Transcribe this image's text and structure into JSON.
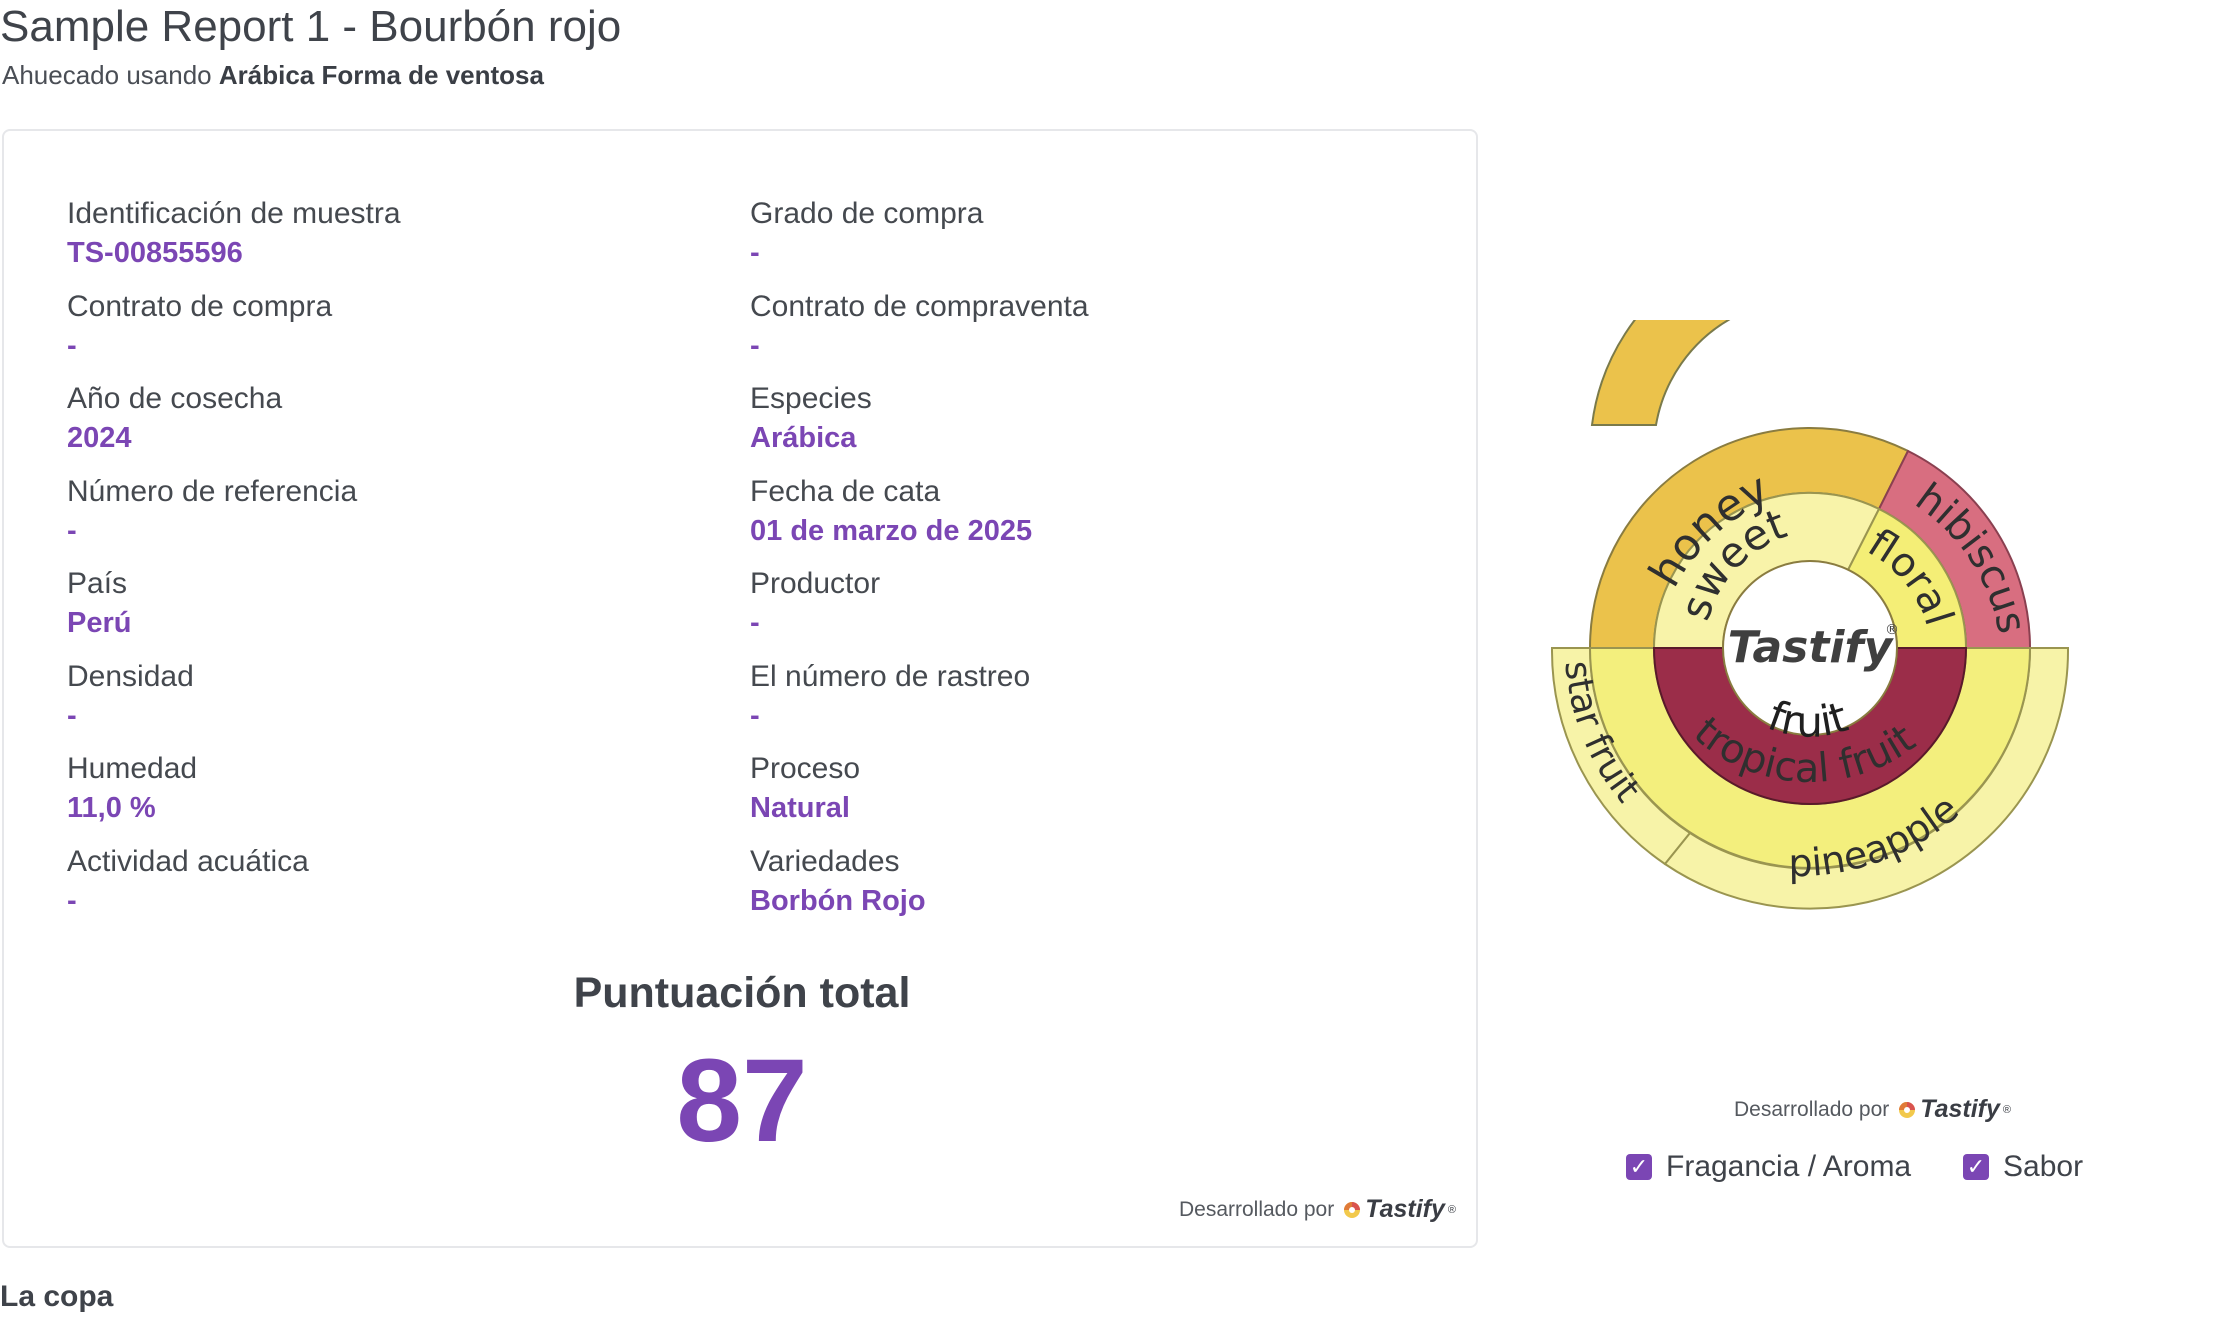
{
  "header": {
    "title": "Sample Report 1 - Bourbón rojo",
    "subtitle_prefix": "Ahuecado usando",
    "subtitle_form": "Arábica Forma de ventosa"
  },
  "details": {
    "left": [
      {
        "label": "Identificación de muestra",
        "value": "TS-00855596"
      },
      {
        "label": "Contrato de compra",
        "value": "-"
      },
      {
        "label": "Año de cosecha",
        "value": "2024"
      },
      {
        "label": "Número de referencia",
        "value": "-"
      },
      {
        "label": "País",
        "value": "Perú"
      },
      {
        "label": "Densidad",
        "value": "-"
      },
      {
        "label": "Humedad",
        "value": "11,0 %"
      },
      {
        "label": "Actividad acuática",
        "value": "-"
      }
    ],
    "right": [
      {
        "label": "Grado de compra",
        "value": "-"
      },
      {
        "label": "Contrato de compraventa",
        "value": "-"
      },
      {
        "label": "Especies",
        "value": "Arábica"
      },
      {
        "label": "Fecha de cata",
        "value": "01 de marzo de 2025"
      },
      {
        "label": "Productor",
        "value": "-"
      },
      {
        "label": "El número de rastreo",
        "value": "-"
      },
      {
        "label": "Proceso",
        "value": "Natural"
      },
      {
        "label": "Variedades",
        "value": "Borbón Rojo"
      }
    ]
  },
  "score": {
    "label": "Puntuación total",
    "value": "87"
  },
  "powered_by": {
    "label": "Desarrollado por",
    "brand": "Tastify",
    "reg": "®"
  },
  "wheel": {
    "center_logo": "Tastify",
    "center_reg": "®",
    "inner": [
      {
        "label": "sweet",
        "color": "#f8f3a9"
      },
      {
        "label": "floral",
        "color": "#f4ee76"
      },
      {
        "label": "fruit",
        "color": "#9b2d49"
      }
    ],
    "middle": [
      {
        "label": "tropical fruit",
        "color": "#f3ef7d"
      }
    ],
    "outer": [
      {
        "label": "honey",
        "color": "#ebc24b"
      },
      {
        "label": "hibiscus",
        "color": "#d86e80"
      },
      {
        "label": "star fruit",
        "color": "#f7f3a8"
      },
      {
        "label": "pineapple",
        "color": "#f7f3a8"
      }
    ]
  },
  "legend": [
    {
      "label": "Fragancia / Aroma",
      "checked": true
    },
    {
      "label": "Sabor",
      "checked": true
    }
  ],
  "section": {
    "title": "La copa"
  },
  "colors": {
    "accent": "#7b46b4",
    "text": "#3f434a",
    "border": "#e6e7ea"
  }
}
